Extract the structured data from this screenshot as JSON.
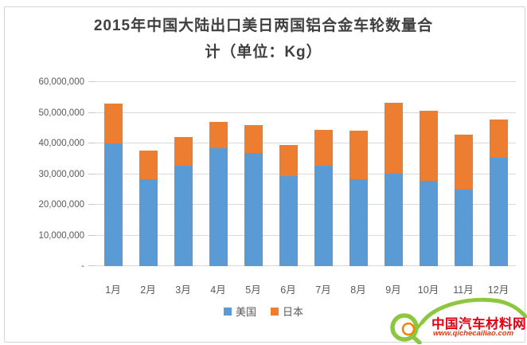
{
  "title_line1": "2015年中国大陆出口美日两国铝合金车轮数量合",
  "title_line2": "计（单位：Kg）",
  "chart_data": {
    "type": "bar",
    "stacked": true,
    "title": "2015年中国大陆出口美日两国铝合金车轮数量合计（单位：Kg）",
    "xlabel": "",
    "ylabel": "",
    "unit": "Kg",
    "categories": [
      "1月",
      "2月",
      "3月",
      "4月",
      "5月",
      "6月",
      "7月",
      "8月",
      "9月",
      "10月",
      "11月",
      "12月"
    ],
    "series": [
      {
        "name": "美国",
        "color": "#5B9BD5",
        "values": [
          40000000,
          28300000,
          32700000,
          38400000,
          36900000,
          29300000,
          32800000,
          28300000,
          30100000,
          27900000,
          24900000,
          35300000
        ]
      },
      {
        "name": "日本",
        "color": "#ED7D31",
        "values": [
          12900000,
          9300000,
          9500000,
          8700000,
          9000000,
          10100000,
          11700000,
          15900000,
          23200000,
          22700000,
          17900000,
          12400000
        ]
      }
    ],
    "ylim": [
      0,
      60000000
    ],
    "ytick_interval": 10000000,
    "ytick_labels_top_down": [
      "60,000,000",
      "50,000,000",
      "40,000,000",
      "30,000,000",
      "20,000,000",
      "10,000,000",
      "-"
    ],
    "grid": true,
    "legend_position": "bottom"
  },
  "legend": {
    "items": [
      {
        "label": "美国",
        "color": "#5B9BD5"
      },
      {
        "label": "日本",
        "color": "#ED7D31"
      }
    ]
  },
  "watermark": {
    "site_name": "中国汽车材料网",
    "site_url": "www.qichecailiao.com",
    "green": "#8DC63F",
    "orange": "#F08300",
    "red": "#E60012"
  },
  "colors": {
    "grid": "#D9D9D9",
    "axis_text": "#595959",
    "title_text": "#3F3F3F",
    "frame_border": "#D6D6D6",
    "background": "#FFFFFF"
  }
}
